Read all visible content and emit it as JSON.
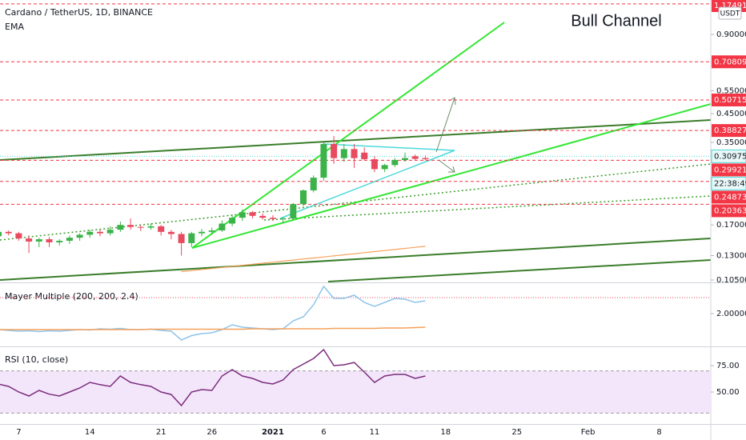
{
  "header": {
    "symbol": "Cardano / TetherUS, 1D, BINANCE",
    "currency": "USDT",
    "annotation": "Bull Channel"
  },
  "chart_data": [
    {
      "type": "candlestick",
      "log": true,
      "up_color": "#3bb34a",
      "down_color": "#e84a5f",
      "categories": [
        null,
        null,
        "7",
        null,
        null,
        null,
        null,
        null,
        null,
        "14",
        null,
        null,
        null,
        null,
        null,
        null,
        "21",
        null,
        null,
        null,
        null,
        "26",
        null,
        null,
        null,
        null,
        null,
        "2021",
        null,
        null,
        null,
        null,
        "6",
        null,
        null,
        null,
        null,
        "11",
        null,
        null,
        null,
        null,
        null,
        null,
        "18",
        null,
        null,
        null,
        null,
        null,
        null,
        "25",
        null,
        null,
        null,
        null,
        null,
        null,
        "Feb",
        null,
        null,
        null,
        null,
        null,
        null,
        "8",
        null,
        null,
        null,
        null
      ],
      "open": [
        0.154,
        0.16,
        0.158,
        0.151,
        0.147,
        0.15,
        0.146,
        0.148,
        0.152,
        0.156,
        0.16,
        0.158,
        0.163,
        0.17,
        0.167,
        0.166,
        0.168,
        0.16,
        0.157,
        0.145,
        0.158,
        0.16,
        0.162,
        0.172,
        0.181,
        0.19,
        0.184,
        0.181,
        0.179,
        0.18,
        0.204,
        0.23,
        0.257,
        0.345,
        0.305,
        0.33,
        0.32,
        0.302,
        0.277,
        0.287,
        0.3,
        0.31,
        0.305,
        null,
        null,
        null,
        null,
        null,
        null,
        null,
        null,
        null,
        null,
        null,
        null,
        null,
        null,
        null,
        null,
        null,
        null,
        null,
        null,
        null,
        null,
        null,
        null,
        null,
        null,
        null
      ],
      "high": [
        0.163,
        0.162,
        0.16,
        0.155,
        0.152,
        0.153,
        0.15,
        0.155,
        0.158,
        0.163,
        0.163,
        0.168,
        0.175,
        0.18,
        0.17,
        0.172,
        0.17,
        0.163,
        0.16,
        0.16,
        0.164,
        0.166,
        0.177,
        0.186,
        0.195,
        0.192,
        0.188,
        0.185,
        0.182,
        0.206,
        0.232,
        0.262,
        0.35,
        0.37,
        0.345,
        0.345,
        0.335,
        0.31,
        0.29,
        0.305,
        0.32,
        0.315,
        0.312,
        null,
        null,
        null,
        null,
        null,
        null,
        null,
        null,
        null,
        null,
        null,
        null,
        null,
        null,
        null,
        null,
        null,
        null,
        null,
        null,
        null,
        null,
        null,
        null,
        null,
        null,
        null
      ],
      "low": [
        0.15,
        0.155,
        0.148,
        0.133,
        0.14,
        0.14,
        0.142,
        0.144,
        0.148,
        0.152,
        0.154,
        0.155,
        0.16,
        0.163,
        0.161,
        0.163,
        0.155,
        0.15,
        0.13,
        0.14,
        0.154,
        0.157,
        0.16,
        0.168,
        0.176,
        0.18,
        0.178,
        0.176,
        0.172,
        0.178,
        0.2,
        0.226,
        0.25,
        0.29,
        0.295,
        0.28,
        0.3,
        0.27,
        0.27,
        0.282,
        0.295,
        0.298,
        0.3,
        null,
        null,
        null,
        null,
        null,
        null,
        null,
        null,
        null,
        null,
        null,
        null,
        null,
        null,
        null,
        null,
        null,
        null,
        null,
        null,
        null,
        null,
        null,
        null,
        null,
        null,
        null
      ],
      "close": [
        0.16,
        0.158,
        0.151,
        0.147,
        0.15,
        0.146,
        0.148,
        0.152,
        0.156,
        0.16,
        0.158,
        0.163,
        0.17,
        0.167,
        0.166,
        0.168,
        0.16,
        0.157,
        0.145,
        0.158,
        0.16,
        0.162,
        0.172,
        0.181,
        0.19,
        0.184,
        0.181,
        0.179,
        0.18,
        0.204,
        0.23,
        0.257,
        0.345,
        0.305,
        0.33,
        0.305,
        0.302,
        0.277,
        0.287,
        0.3,
        0.305,
        0.303,
        0.302,
        null,
        null,
        null,
        null,
        null,
        null,
        null,
        null,
        null,
        null,
        null,
        null,
        null,
        null,
        null,
        null,
        null,
        null,
        null,
        null,
        null,
        null,
        null,
        null,
        null,
        null,
        null
      ],
      "ema": {
        "name": "EMA",
        "color": "#f5a15b",
        "values": [
          null,
          null,
          null,
          null,
          null,
          null,
          null,
          null,
          null,
          null,
          null,
          null,
          null,
          null,
          null,
          null,
          null,
          null,
          0.113,
          0.114,
          0.1151,
          0.1161,
          0.1172,
          0.1183,
          0.1194,
          0.1205,
          0.1216,
          0.1227,
          0.1239,
          0.125,
          0.1262,
          0.1273,
          0.1285,
          0.1297,
          0.1309,
          0.1321,
          0.1334,
          0.1346,
          0.1359,
          0.1371,
          0.1384,
          0.1397,
          0.141,
          null,
          null,
          null,
          null,
          null,
          null,
          null,
          null,
          null,
          null,
          null,
          null,
          null,
          null,
          null,
          null,
          null,
          null,
          null,
          null,
          null,
          null,
          null,
          null,
          null,
          null,
          null
        ]
      },
      "ylim": [
        0.1014,
        1.216
      ],
      "yticks": [
        {
          "value": 0.9,
          "label": "0.90000"
        },
        {
          "value": 0.55,
          "label": "0.55000"
        },
        {
          "value": 0.45,
          "label": "0.45000"
        },
        {
          "value": 0.35,
          "label": "0.35000"
        },
        {
          "value": 0.17,
          "label": "0.17000"
        },
        {
          "value": 0.13,
          "label": "0.13000"
        },
        {
          "value": 0.105,
          "label": "0.10500"
        }
      ],
      "levels": [
        1.17491,
        0.70809,
        0.50715,
        0.38827,
        0.29921,
        0.24873,
        0.20363
      ],
      "level_color": "#f23645",
      "last_price": 0.30975,
      "countdown": "22:38:49"
    },
    {
      "type": "line",
      "title": "Mayer Multiple (200, 200, 2.4)",
      "series": [
        {
          "color": "#8ec4ea",
          "values": [
            1.6,
            1.58,
            1.56,
            1.57,
            1.55,
            1.57,
            1.56,
            1.58,
            1.6,
            1.59,
            1.62,
            1.61,
            1.63,
            1.6,
            1.6,
            1.61,
            1.58,
            1.56,
            1.34,
            1.45,
            1.5,
            1.52,
            1.6,
            1.72,
            1.66,
            1.64,
            1.62,
            1.6,
            1.62,
            1.82,
            1.92,
            2.22,
            2.68,
            2.38,
            2.38,
            2.46,
            2.28,
            2.18,
            2.28,
            2.38,
            2.36,
            2.28,
            2.32
          ]
        },
        {
          "color": "#f5a15b",
          "values": [
            1.6,
            1.6,
            1.6,
            1.6,
            1.6,
            1.6,
            1.6,
            1.6,
            1.6,
            1.6,
            1.6,
            1.6,
            1.6,
            1.6,
            1.6,
            1.61,
            1.61,
            1.61,
            1.61,
            1.61,
            1.61,
            1.61,
            1.61,
            1.61,
            1.61,
            1.62,
            1.62,
            1.62,
            1.62,
            1.62,
            1.62,
            1.62,
            1.62,
            1.63,
            1.63,
            1.63,
            1.63,
            1.63,
            1.64,
            1.64,
            1.64,
            1.65,
            1.66
          ]
        }
      ],
      "reference": 2.4,
      "ylim": [
        1.2,
        2.74
      ],
      "yticks": [
        {
          "value": 2,
          "label": "2.00000"
        }
      ]
    },
    {
      "type": "line",
      "title": "RSI (10, close)",
      "series": [
        {
          "color": "#7b2d7b",
          "values": [
            57.6,
            55.3,
            50,
            46.2,
            51.5,
            48,
            46.2,
            50,
            53.8,
            59.1,
            57,
            55.3,
            65.2,
            59.1,
            57,
            55.3,
            50,
            47.7,
            37.1,
            50,
            52.3,
            51.5,
            65.2,
            71.2,
            65.2,
            62.9,
            59.1,
            57.6,
            61.4,
            71.2,
            76.5,
            81.8,
            90.2,
            75,
            75.8,
            78,
            68.9,
            59.1,
            65.2,
            66.7,
            66.7,
            62.9,
            65.2
          ]
        }
      ],
      "band": [
        30,
        70
      ],
      "ylim": [
        19.7,
        91.7
      ],
      "yticks": [
        {
          "value": 75,
          "label": "75.00"
        },
        {
          "value": 50,
          "label": "50.00"
        }
      ]
    }
  ]
}
